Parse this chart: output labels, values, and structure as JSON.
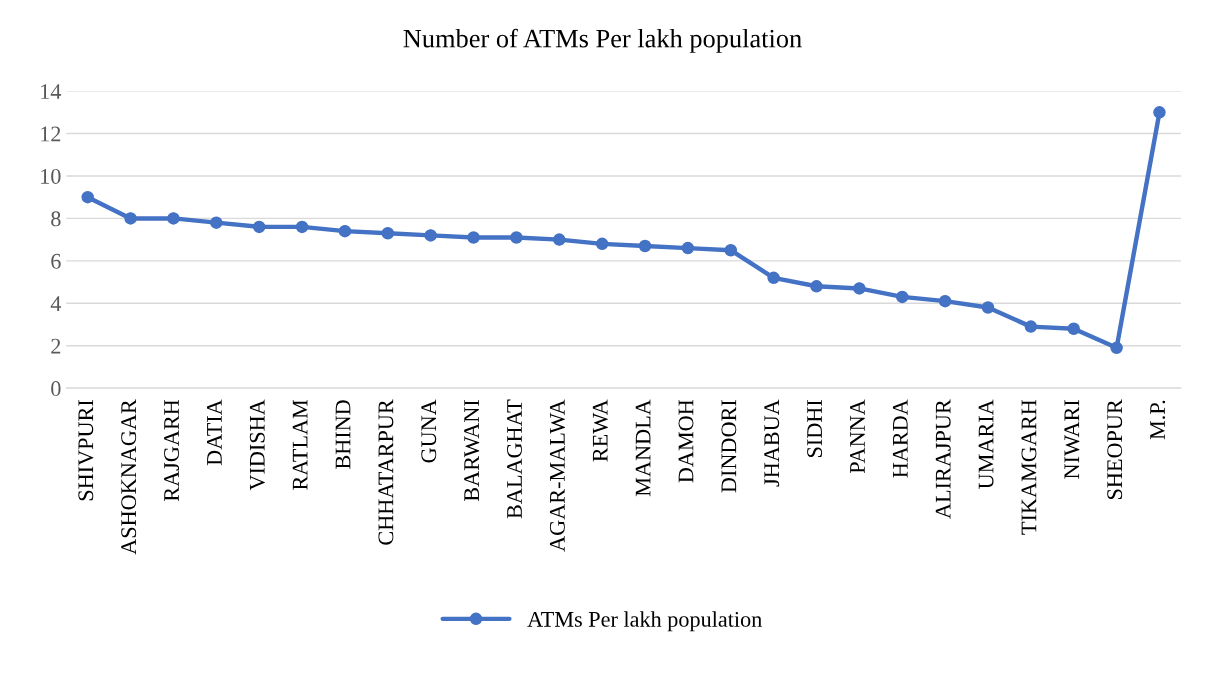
{
  "chart_data": {
    "type": "line",
    "title": "Number of ATMs Per lakh population",
    "categories": [
      "SHIVPURI",
      "ASHOKNAGAR",
      "RAJGARH",
      "DATIA",
      "VIDISHA",
      "RATLAM",
      "BHIND",
      "CHHATARPUR",
      "GUNA",
      "BARWANI",
      "BALAGHAT",
      "AGAR-MALWA",
      "REWA",
      "MANDLA",
      "DAMOH",
      "DINDORI",
      "JHABUA",
      "SIDHI",
      "PANNA",
      "HARDA",
      "ALIRAJPUR",
      "UMARIA",
      "TIKAMGARH",
      "NIWARI",
      "SHEOPUR",
      "M.P."
    ],
    "series": [
      {
        "name": "ATMs Per lakh population",
        "color": "#4472c4",
        "values": [
          9.0,
          8.0,
          8.0,
          7.8,
          7.6,
          7.6,
          7.4,
          7.3,
          7.2,
          7.1,
          7.1,
          7.0,
          6.8,
          6.7,
          6.6,
          6.5,
          5.2,
          4.8,
          4.7,
          4.3,
          4.1,
          3.8,
          2.9,
          2.8,
          1.9,
          13.0
        ]
      }
    ],
    "ylim": [
      0,
      14
    ],
    "yticks": [
      0,
      2,
      4,
      6,
      8,
      10,
      12,
      14
    ],
    "grid": "y",
    "legend": "bottom",
    "marker": "circle",
    "line_style": "solid"
  }
}
